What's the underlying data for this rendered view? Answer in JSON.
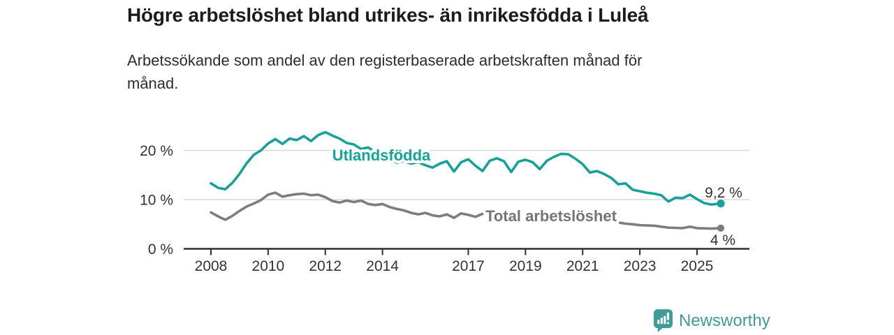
{
  "header": {
    "title": "Högre arbetslöshet bland utrikes- än inrikesfödda i Luleå",
    "subtitle": "Arbetssökande som andel av den registerbaserade arbetskraften månad för månad.",
    "subtitle_line1": "Arbetssökande som andel av den registerbaserade arbetskraften månad för",
    "subtitle_line2": "månad."
  },
  "colors": {
    "accent_teal": "#16a296",
    "series_gray": "#7d7d7d",
    "series_gray_label": "#757575",
    "axis_dark": "#2e2e2e",
    "text_dark": "#333333",
    "gridline": "#d8d8d8",
    "brand_teal": "#3f9c98",
    "background": "#ffffff"
  },
  "chart_data": {
    "type": "line",
    "title": "Högre arbetslöshet bland utrikes- än inrikesfödda i Luleå",
    "xlabel": "",
    "ylabel": "",
    "grid": "horizontal",
    "legend_position": "inline-labels",
    "xlim": [
      2007,
      2026.9
    ],
    "ylim": [
      0,
      25.5
    ],
    "x_tick_labels": [
      "2008",
      "2010",
      "2012",
      "2014",
      "2017",
      "2019",
      "2021",
      "2023",
      "2025"
    ],
    "x_tick_years": [
      2008,
      2010,
      2012,
      2014,
      2017,
      2019,
      2021,
      2023,
      2025
    ],
    "y_tick_labels": [
      "0 %",
      "10 %",
      "20 %"
    ],
    "y_tick_values": [
      0,
      10,
      20
    ],
    "series": [
      {
        "name": "Utlandsfödda",
        "color": "#16a296",
        "end_label": "9,2 %",
        "end_value": 9.2,
        "segments": [
          {
            "x": [
              2008,
              2008.25,
              2008.5,
              2008.75,
              2009,
              2009.25,
              2009.5,
              2009.75,
              2010,
              2010.25,
              2010.5,
              2010.75,
              2011,
              2011.25,
              2011.5,
              2011.75,
              2012,
              2012.25,
              2012.5,
              2012.75,
              2013,
              2013.25,
              2013.5,
              2013.75,
              2014,
              2014.25,
              2014.5,
              2014.75,
              2015,
              2015.25,
              2015.5,
              2015.75,
              2016,
              2016.25,
              2016.5,
              2016.75,
              2017,
              2017.25,
              2017.5,
              2017.75,
              2018,
              2018.25,
              2018.5,
              2018.75,
              2019,
              2019.25,
              2019.5,
              2019.75,
              2020,
              2020.25,
              2020.5,
              2020.75,
              2021,
              2021.25,
              2021.5,
              2021.75,
              2022,
              2022.25,
              2022.5,
              2022.75,
              2023,
              2023.25,
              2023.5,
              2023.75,
              2024,
              2024.25,
              2024.5,
              2024.75,
              2025,
              2025.25,
              2025.5,
              2025.83
            ],
            "values": [
              13.3,
              12.4,
              12.1,
              13.4,
              15.2,
              17.4,
              19.1,
              20.0,
              21.4,
              22.3,
              21.3,
              22.4,
              22.1,
              22.9,
              21.9,
              23.1,
              23.7,
              23.0,
              22.4,
              21.5,
              21.2,
              20.3,
              20.6,
              19.6,
              19.3,
              18.3,
              17.5,
              17.8,
              17.3,
              17.6,
              17.0,
              16.5,
              17.3,
              17.8,
              15.7,
              17.6,
              18.2,
              16.9,
              15.8,
              17.9,
              18.4,
              17.8,
              15.6,
              17.7,
              18.1,
              17.6,
              16.2,
              17.9,
              18.7,
              19.3,
              19.2,
              18.3,
              17.2,
              15.5,
              15.8,
              15.2,
              14.4,
              13.1,
              13.3,
              12.0,
              11.7,
              11.4,
              11.2,
              10.9,
              9.6,
              10.4,
              10.3,
              11.0,
              10.1,
              9.3,
              9.0,
              9.2
            ]
          }
        ]
      },
      {
        "name": "Total arbetslöshet",
        "color": "#7d7d7d",
        "end_label": "4 %",
        "end_value": 4.2,
        "segments": [
          {
            "x": [
              2008,
              2008.25,
              2008.5,
              2008.75,
              2009,
              2009.25,
              2009.5,
              2009.75,
              2010,
              2010.25,
              2010.5,
              2010.75,
              2011,
              2011.25,
              2011.5,
              2011.75,
              2012,
              2012.25,
              2012.5,
              2012.75,
              2013,
              2013.25,
              2013.5,
              2013.75,
              2014,
              2014.25,
              2014.5,
              2014.75,
              2015,
              2015.25,
              2015.5,
              2015.75,
              2016,
              2016.25,
              2016.5,
              2016.75,
              2017,
              2017.25,
              2017.5
            ],
            "values": [
              7.4,
              6.6,
              5.9,
              6.7,
              7.7,
              8.6,
              9.2,
              9.9,
              11.0,
              11.4,
              10.6,
              10.9,
              11.1,
              11.2,
              10.9,
              11.0,
              10.5,
              9.7,
              9.4,
              9.8,
              9.5,
              9.8,
              9.1,
              8.9,
              9.1,
              8.5,
              8.1,
              7.8,
              7.3,
              7.0,
              7.3,
              6.8,
              6.6,
              7.0,
              6.3,
              7.2,
              6.9,
              6.5,
              7.1
            ]
          },
          {
            "x": [
              2022.3,
              2022.5,
              2022.75,
              2023,
              2023.25,
              2023.5,
              2023.75,
              2024,
              2024.25,
              2024.5,
              2024.75,
              2025,
              2025.25,
              2025.5,
              2025.83
            ],
            "values": [
              5.3,
              5.1,
              5.0,
              4.8,
              4.75,
              4.7,
              4.5,
              4.3,
              4.25,
              4.2,
              4.5,
              4.2,
              4.15,
              4.1,
              4.2
            ]
          }
        ]
      }
    ]
  },
  "footer": {
    "brand": "Newsworthy",
    "logo_icon": "bar-chart-speech-bubble-icon"
  }
}
